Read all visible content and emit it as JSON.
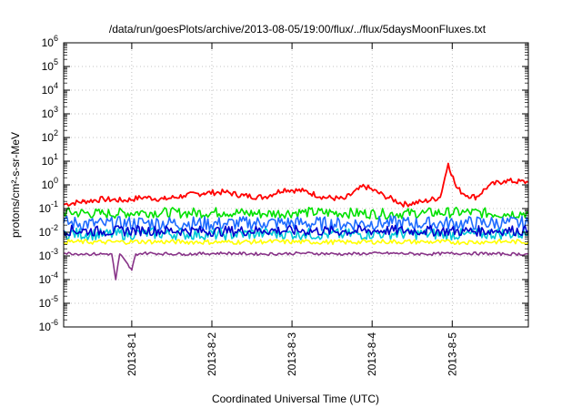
{
  "chart_data": {
    "type": "line",
    "title": "/data/run/goesPlots/archive/2013-08-05/19:00/flux/../flux/5daysMoonFluxes.txt",
    "xlabel": "Coordinated Universal Time (UTC)",
    "ylabel": "protons/cm²-s-sr-MeV",
    "yscale": "log",
    "ylim": [
      1e-06,
      1000000.0
    ],
    "xlim": [
      0,
      5.8
    ],
    "xtick_values": [
      0.85,
      1.85,
      2.85,
      3.85,
      4.85
    ],
    "xtick_labels": [
      "2013-8-1",
      "2013-8-2",
      "2013-8-3",
      "2013-8-4",
      "2013-8-5"
    ],
    "ytick_exponents": [
      -6,
      -5,
      -4,
      -3,
      -2,
      -1,
      0,
      1,
      2,
      3,
      4,
      5,
      6
    ],
    "grid": true,
    "legend": "none",
    "series": [
      {
        "color": "#ff0000",
        "x": [
          0,
          0.25,
          0.5,
          0.75,
          1.0,
          1.25,
          1.5,
          1.75,
          2.0,
          2.25,
          2.5,
          2.75,
          3.0,
          3.25,
          3.5,
          3.75,
          4.0,
          4.25,
          4.5,
          4.7,
          4.8,
          4.9,
          5.0,
          5.15,
          5.3,
          5.5,
          5.8
        ],
        "y": [
          0.15,
          0.2,
          0.25,
          0.22,
          0.3,
          0.25,
          0.35,
          0.45,
          0.5,
          0.35,
          0.3,
          0.65,
          0.55,
          0.3,
          0.25,
          0.9,
          0.35,
          0.15,
          0.2,
          0.3,
          8,
          0.8,
          0.4,
          0.3,
          0.9,
          1.5,
          1.3
        ]
      },
      {
        "color": "#00e000",
        "x": [
          0,
          0.5,
          1.0,
          1.5,
          2.0,
          2.5,
          3.0,
          3.5,
          4.0,
          4.5,
          5.0,
          5.5,
          5.8
        ],
        "y": [
          0.07,
          0.06,
          0.07,
          0.065,
          0.07,
          0.06,
          0.07,
          0.065,
          0.06,
          0.065,
          0.07,
          0.06,
          0.065
        ]
      },
      {
        "color": "#1e6bff",
        "x": [
          0,
          0.5,
          1.0,
          1.5,
          2.0,
          2.5,
          3.0,
          3.5,
          4.0,
          4.5,
          5.0,
          5.5,
          5.8
        ],
        "y": [
          0.025,
          0.022,
          0.025,
          0.024,
          0.023,
          0.025,
          0.024,
          0.022,
          0.025,
          0.023,
          0.024,
          0.025,
          0.023
        ]
      },
      {
        "color": "#00c8d8",
        "x": [
          0,
          0.5,
          1.0,
          1.5,
          2.0,
          2.5,
          3.0,
          3.5,
          4.0,
          4.5,
          5.0,
          5.5,
          5.8
        ],
        "y": [
          0.009,
          0.008,
          0.009,
          0.0085,
          0.008,
          0.009,
          0.0085,
          0.008,
          0.009,
          0.0085,
          0.008,
          0.009,
          0.0085
        ]
      },
      {
        "color": "#0000cc",
        "x": [
          0,
          0.5,
          1.0,
          1.5,
          2.0,
          2.5,
          3.0,
          3.5,
          4.0,
          4.5,
          5.0,
          5.5,
          5.8
        ],
        "y": [
          0.012,
          0.011,
          0.012,
          0.0115,
          0.011,
          0.012,
          0.0115,
          0.011,
          0.012,
          0.0115,
          0.011,
          0.012,
          0.0115
        ]
      },
      {
        "color": "#ffff00",
        "x": [
          0,
          0.5,
          1.0,
          1.5,
          2.0,
          2.5,
          3.0,
          3.5,
          4.0,
          4.5,
          5.0,
          5.5,
          5.8
        ],
        "y": [
          0.004,
          0.0038,
          0.004,
          0.0039,
          0.0038,
          0.004,
          0.0039,
          0.0038,
          0.004,
          0.0039,
          0.0038,
          0.004,
          0.0039
        ]
      },
      {
        "color": "#883388",
        "x": [
          0,
          0.3,
          0.6,
          0.65,
          0.7,
          0.85,
          0.9,
          1.0,
          1.5,
          2.0,
          2.5,
          3.0,
          3.5,
          4.0,
          4.5,
          5.0,
          5.5,
          5.8
        ],
        "y": [
          0.0013,
          0.0012,
          0.0012,
          0.0001,
          0.0012,
          0.00025,
          0.0012,
          0.0013,
          0.0012,
          0.0013,
          0.0012,
          0.0013,
          0.0012,
          0.0013,
          0.0012,
          0.0013,
          0.0012,
          0.0012
        ]
      }
    ]
  }
}
